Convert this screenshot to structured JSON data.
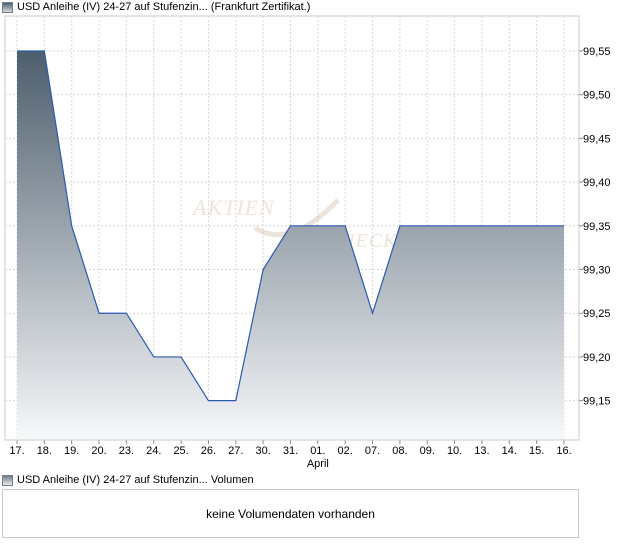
{
  "price_legend": "USD Anleihe (IV) 24-27 auf Stufenzin... (Frankfurt Zertifikat.)",
  "volume_legend": "USD Anleihe (IV) 24-27 auf Stufenzin... Volumen",
  "volume_message": "keine Volumendaten vorhanden",
  "watermark": "AKTIENCHECK",
  "colors": {
    "line": "#2a5ab0",
    "fill_top": "#4d5e6d",
    "fill_bottom": "#f7f8fa",
    "grid": "#d8d8d8",
    "frame": "#c8c8c8"
  },
  "chart_data": {
    "type": "area",
    "title": "USD Anleihe (IV) 24-27 auf Stufenzin... (Frankfurt Zertifikat.)",
    "x": [
      "17.",
      "18.",
      "19.",
      "20.",
      "23.",
      "24.",
      "25.",
      "26.",
      "27.",
      "30.",
      "31.",
      "01.",
      "02.",
      "07.",
      "08.",
      "09.",
      "10.",
      "13.",
      "14.",
      "15.",
      "16."
    ],
    "x_group_label": {
      "at": "01.",
      "text": "April"
    },
    "series": [
      {
        "values": [
          99.55,
          99.55,
          99.35,
          99.25,
          99.25,
          99.2,
          99.2,
          99.15,
          99.15,
          99.3,
          99.35,
          99.35,
          99.35,
          99.25,
          99.35,
          99.35,
          99.35,
          99.35,
          99.35,
          99.35,
          99.35
        ]
      }
    ],
    "y_ticks": [
      "99,15",
      "99,20",
      "99,25",
      "99,30",
      "99,35",
      "99,40",
      "99,45",
      "99,50",
      "99,55"
    ],
    "ylim": [
      99.105,
      99.59
    ],
    "grid": true,
    "y_axis_side": "right"
  }
}
